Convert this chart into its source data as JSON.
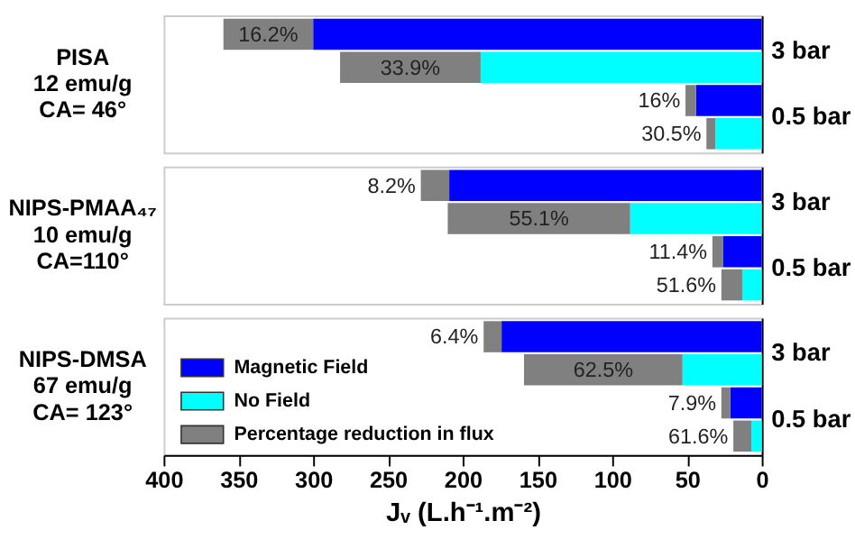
{
  "chart_data": [
    {
      "type": "bar",
      "orientation": "horizontal",
      "stacked": true,
      "categories": [
        "3 bar",
        null,
        "0.5 bar",
        null
      ],
      "annotations": [
        "PISA",
        "12 emu/g",
        "CA= 46°",
        {
          "text": "16.2%",
          "x": 360
        },
        {
          "text": "33.9%",
          "x": 282
        },
        {
          "text": "16%",
          "x": 51
        },
        {
          "text": "30.5%",
          "x": 37
        }
      ],
      "xlim": [
        400,
        0
      ],
      "xticks": [
        400,
        350,
        300,
        250,
        200,
        150,
        100,
        50,
        0
      ],
      "tick_labels": "y",
      "legend": false,
      "series": [
        {
          "color": "#0000ff",
          "values": [
            300,
            null,
            44,
            null
          ]
        },
        {
          "color": "#00ffff",
          "values": [
            null,
            188,
            null,
            31
          ]
        },
        {
          "color": "#808080",
          "values": [
            60,
            94,
            7,
            6
          ]
        }
      ]
    },
    {
      "type": "bar",
      "orientation": "horizontal",
      "stacked": true,
      "categories": [
        "3 bar",
        null,
        "0.5 bar",
        null
      ],
      "annotations": [
        "NIPS-PMAA₄₇",
        "10 emu/g",
        "CA=110°",
        {
          "text": "8.2%",
          "x": 228
        },
        {
          "text": "55.1%",
          "x": 210
        },
        {
          "text": "11.4%",
          "x": 33
        },
        {
          "text": "51.6%",
          "x": 27
        }
      ],
      "xlim": [
        400,
        0
      ],
      "xticks": [
        400,
        350,
        300,
        250,
        200,
        150,
        100,
        50,
        0
      ],
      "tick_labels": "y",
      "legend": false,
      "series": [
        {
          "color": "#0000ff",
          "values": [
            209,
            null,
            26,
            null
          ]
        },
        {
          "color": "#00ffff",
          "values": [
            null,
            88,
            null,
            13
          ]
        },
        {
          "color": "#808080",
          "values": [
            19,
            122,
            7,
            14
          ]
        }
      ]
    },
    {
      "type": "bar",
      "orientation": "horizontal",
      "stacked": true,
      "categories": [
        "3 bar",
        null,
        "0.5 bar",
        null
      ],
      "annotations": [
        "NIPS-DMSA",
        "67 emu/g",
        "CA= 123°",
        {
          "text": "6.4%",
          "x": 186
        },
        {
          "text": "62.5%",
          "x": 159
        },
        {
          "text": "7.9%",
          "x": 27
        },
        {
          "text": "61.6%",
          "x": 19
        }
      ],
      "xlim": [
        400,
        0
      ],
      "xticks": [
        400,
        350,
        300,
        250,
        200,
        150,
        100,
        50,
        0
      ],
      "xlabel": "Jᵥ (L.h⁻¹.m⁻²)",
      "legend": "left",
      "series": [
        {
          "name": "Magnetic Field",
          "color": "#0000ff",
          "values": [
            174,
            null,
            21,
            null
          ]
        },
        {
          "name": "No Field",
          "color": "#00ffff",
          "values": [
            null,
            53,
            null,
            7
          ]
        },
        {
          "name": "Percentage reduction in flux",
          "color": "#808080",
          "values": [
            12,
            106,
            6,
            12
          ]
        }
      ]
    }
  ]
}
